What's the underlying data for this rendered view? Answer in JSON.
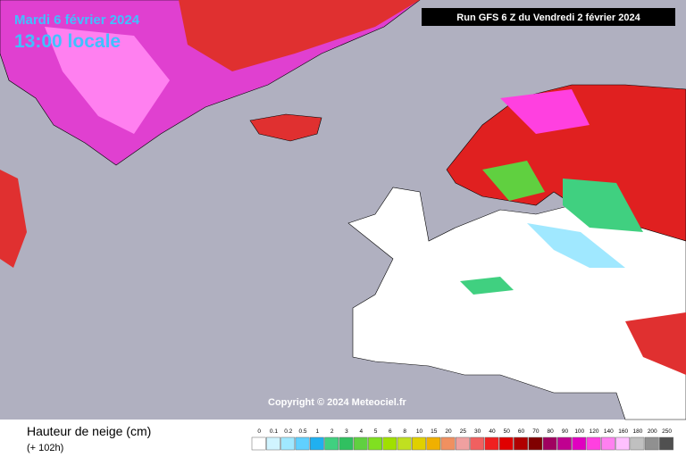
{
  "header": {
    "date": "Mardi 6 février 2024",
    "time": "13:00 locale",
    "run": "Run GFS 6 Z du Vendredi 2 février 2024"
  },
  "copyright": "Copyright © 2024 Meteociel.fr",
  "footer": {
    "title": "Hauteur de neige (cm)",
    "lead": "(+ 102h)"
  },
  "legend": {
    "labels": [
      "0",
      "0.1",
      "0.2",
      "0.5",
      "1",
      "2",
      "3",
      "4",
      "5",
      "6",
      "8",
      "10",
      "15",
      "20",
      "25",
      "30",
      "40",
      "50",
      "60",
      "70",
      "80",
      "90",
      "100",
      "120",
      "140",
      "160",
      "180",
      "200",
      "250"
    ],
    "colors": [
      "#ffffff",
      "#d0f4ff",
      "#a0e8ff",
      "#60d0ff",
      "#20b0f0",
      "#40d080",
      "#30c060",
      "#60d040",
      "#80e020",
      "#a0e000",
      "#c0e020",
      "#e0d000",
      "#f0b000",
      "#f09060",
      "#f0a0a0",
      "#f06060",
      "#f02020",
      "#e00000",
      "#b00000",
      "#800000",
      "#a00060",
      "#c00090",
      "#e000c0",
      "#ff40e0",
      "#ff80f0",
      "#ffc0ff",
      "#c0c0c0",
      "#909090",
      "#505050"
    ]
  }
}
